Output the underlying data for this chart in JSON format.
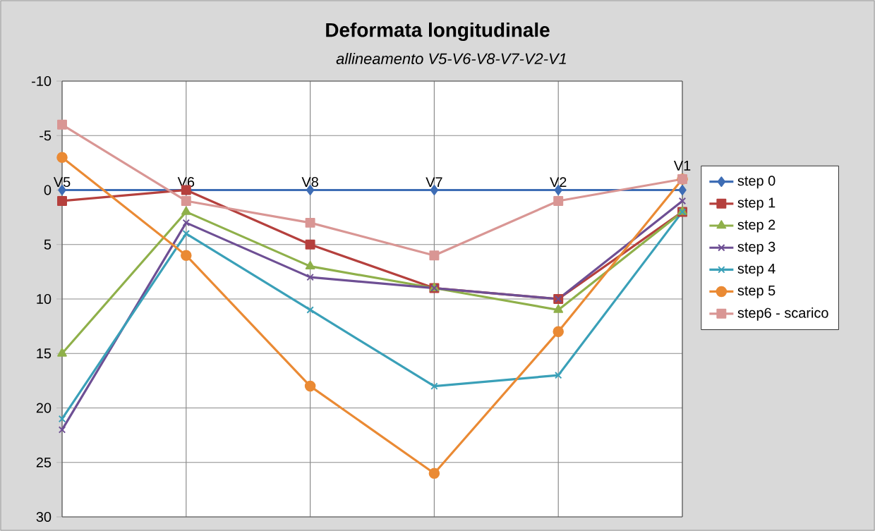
{
  "chart_data": {
    "type": "line",
    "title": "Deformata longitudinale",
    "subtitle": "allineamento V5-V6-V8-V7-V2-V1",
    "categories": [
      "V5",
      "V6",
      "V8",
      "V7",
      "V2",
      "V1"
    ],
    "series": [
      {
        "name": "step 0",
        "color": "#3e6db5",
        "marker": "diamond",
        "values": [
          0,
          0,
          0,
          0,
          0,
          0
        ]
      },
      {
        "name": "step 1",
        "color": "#b5403d",
        "marker": "square",
        "values": [
          1,
          0,
          5,
          9,
          10,
          2
        ]
      },
      {
        "name": "step 2",
        "color": "#8fb04a",
        "marker": "triangle",
        "values": [
          15,
          2,
          7,
          9,
          11,
          2
        ]
      },
      {
        "name": "step 3",
        "color": "#6e4f94",
        "marker": "cross",
        "values": [
          22,
          3,
          8,
          9,
          10,
          1
        ]
      },
      {
        "name": "step 4",
        "color": "#3aa0b8",
        "marker": "cross",
        "values": [
          21,
          4,
          11,
          18,
          17,
          2
        ]
      },
      {
        "name": "step 5",
        "color": "#ea8a34",
        "marker": "circle",
        "values": [
          -3,
          6,
          18,
          26,
          13,
          -1
        ]
      },
      {
        "name": "step6 - scarico",
        "color": "#d99694",
        "marker": "square",
        "values": [
          -6,
          1,
          3,
          6,
          1,
          -1
        ]
      }
    ],
    "ylim": [
      30,
      -10
    ],
    "yticks": [
      -10,
      -5,
      0,
      5,
      10,
      15,
      20,
      25,
      30
    ],
    "grid": true,
    "legend": "right",
    "line_style": "solid"
  }
}
